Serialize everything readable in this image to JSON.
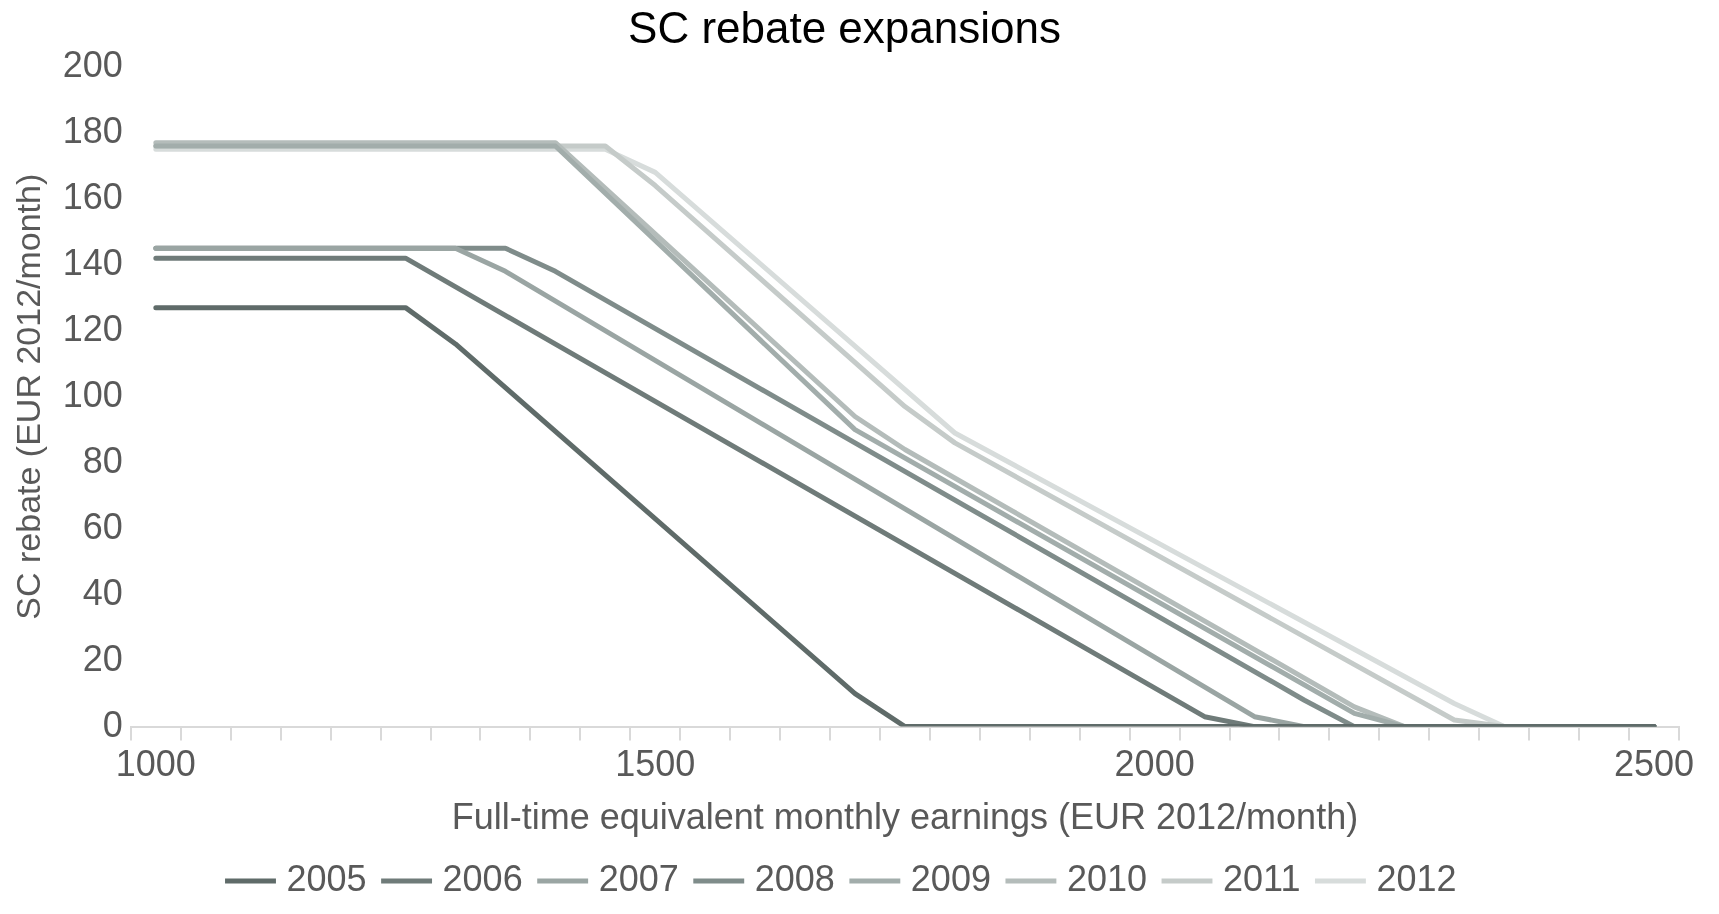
{
  "chart_data": {
    "type": "line",
    "title": "SC rebate expansions",
    "xlabel": "Full-time equivalent monthly earnings (EUR 2012/month)",
    "ylabel": "SC rebate (EUR 2012/month)",
    "xlim": [
      975,
      2525
    ],
    "xticks": [
      {
        "value": 975,
        "label": null
      },
      {
        "value": 1000,
        "label": "1000"
      },
      {
        "value": 1025,
        "label": null
      },
      {
        "value": 1075,
        "label": null
      },
      {
        "value": 1125,
        "label": null
      },
      {
        "value": 1175,
        "label": null
      },
      {
        "value": 1225,
        "label": null
      },
      {
        "value": 1275,
        "label": null
      },
      {
        "value": 1325,
        "label": null
      },
      {
        "value": 1375,
        "label": null
      },
      {
        "value": 1425,
        "label": null
      },
      {
        "value": 1475,
        "label": null
      },
      {
        "value": 1500,
        "label": "1500"
      },
      {
        "value": 1525,
        "label": null
      },
      {
        "value": 1575,
        "label": null
      },
      {
        "value": 1625,
        "label": null
      },
      {
        "value": 1675,
        "label": null
      },
      {
        "value": 1725,
        "label": null
      },
      {
        "value": 1775,
        "label": null
      },
      {
        "value": 1825,
        "label": null
      },
      {
        "value": 1875,
        "label": null
      },
      {
        "value": 1925,
        "label": null
      },
      {
        "value": 1975,
        "label": null
      },
      {
        "value": 2000,
        "label": "2000"
      },
      {
        "value": 2025,
        "label": null
      },
      {
        "value": 2075,
        "label": null
      },
      {
        "value": 2125,
        "label": null
      },
      {
        "value": 2175,
        "label": null
      },
      {
        "value": 2225,
        "label": null
      },
      {
        "value": 2275,
        "label": null
      },
      {
        "value": 2325,
        "label": null
      },
      {
        "value": 2375,
        "label": null
      },
      {
        "value": 2425,
        "label": null
      },
      {
        "value": 2475,
        "label": null
      },
      {
        "value": 2500,
        "label": "2500"
      },
      {
        "value": 2525,
        "label": null
      }
    ],
    "ylim": [
      0,
      200
    ],
    "yticks": [
      0,
      20,
      40,
      60,
      80,
      100,
      120,
      140,
      160,
      180,
      200
    ],
    "grid": false,
    "legend": "bottom",
    "marker": "none",
    "line_style": "solid",
    "series": [
      {
        "name": "2005",
        "color": "#5f6b69",
        "x": [
          1000,
          1250,
          1300,
          1700,
          1750,
          2500
        ],
        "values": [
          127,
          127,
          116,
          10,
          0,
          0
        ]
      },
      {
        "name": "2006",
        "color": "#6f7b79",
        "x": [
          1000,
          1250,
          2050,
          2100,
          2500
        ],
        "values": [
          142,
          142,
          3,
          0,
          0
        ]
      },
      {
        "name": "2007",
        "color": "#9aa5a3",
        "x": [
          1000,
          1300,
          1350,
          2100,
          2150,
          2500
        ],
        "values": [
          145,
          145,
          138,
          3,
          0,
          0
        ]
      },
      {
        "name": "2008",
        "color": "#7f8c8a",
        "x": [
          1000,
          1350,
          1400,
          2150,
          2200,
          2500
        ],
        "values": [
          145,
          145,
          138,
          8,
          0,
          0
        ]
      },
      {
        "name": "2009",
        "color": "#a2adab",
        "x": [
          1000,
          1400,
          1700,
          2200,
          2250,
          2500
        ],
        "values": [
          176,
          176,
          90,
          4,
          0,
          0
        ]
      },
      {
        "name": "2010",
        "color": "#b4bcba",
        "x": [
          1000,
          1400,
          1700,
          1750,
          2200,
          2250,
          2500
        ],
        "values": [
          177,
          177,
          94,
          84,
          6,
          0,
          0
        ]
      },
      {
        "name": "2011",
        "color": "#c5cbc9",
        "x": [
          1000,
          1450,
          1500,
          1750,
          1800,
          2300,
          2350,
          2500
        ],
        "values": [
          176,
          176,
          164,
          97,
          86,
          2,
          0,
          0
        ]
      },
      {
        "name": "2012",
        "color": "#d7dcdb",
        "x": [
          1000,
          1450,
          1500,
          1800,
          2300,
          2350,
          2500
        ],
        "values": [
          175,
          175,
          168,
          89,
          7,
          0,
          0
        ]
      }
    ]
  }
}
